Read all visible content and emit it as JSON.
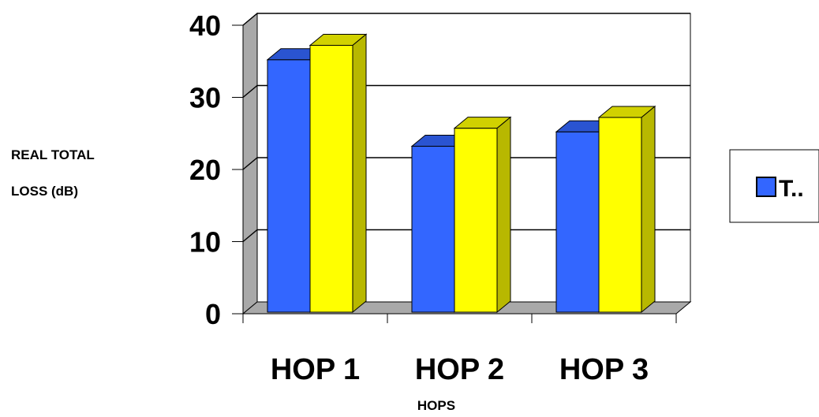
{
  "chart_data": {
    "type": "bar",
    "style": "3d-clustered-column",
    "title": "",
    "xlabel": "HOPS",
    "ylabel_lines": [
      "REAL TOTAL",
      "LOSS (dB)"
    ],
    "categories": [
      "HOP 1",
      "HOP 2",
      "HOP 3"
    ],
    "series": [
      {
        "name": "T..",
        "color": "#3366ff",
        "values": [
          35,
          23,
          25
        ]
      },
      {
        "color": "#ffff00",
        "values": [
          37,
          25.5,
          27
        ]
      }
    ],
    "ylim": [
      0,
      40
    ],
    "yticks": [
      0,
      10,
      20,
      30,
      40
    ],
    "grid": true,
    "legend": {
      "position": "right"
    }
  }
}
